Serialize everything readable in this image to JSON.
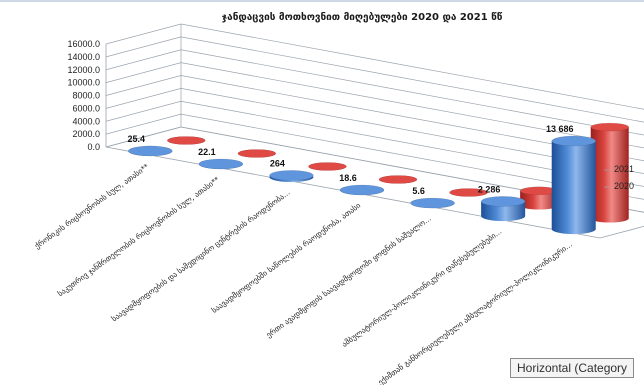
{
  "chart_data": {
    "type": "bar",
    "style": "3d-cylinder",
    "title": "ჯანდაცვის მოთხოვნით მიღებულები 2020 და 2021 წწ",
    "categories": [
      "ქრონიკის რიცხოვნობის სულ, ათასი**",
      "საკუთრივ ჯანმრთელობის რიცხოვნობის სულ, ათასი**",
      "საავადმყოფოების და სამედიცინო ცენტრების რაოდენობა...",
      "საავადმყოფოებში საწოლების რაოდენობა, ათასი",
      "ერთი ავადმყოფის საავადმყოფოში ყოფნის საშუალო...",
      "ამბულატორიულ-პოლიკლინიკური დაწესებულებები...",
      "ექიმთან განხორციელებული ამბულატორიულ-პოლიკლინიკური..."
    ],
    "series": [
      {
        "name": "2020",
        "values": [
          25.4,
          22.1,
          264,
          18.6,
          5.6,
          2286,
          13686
        ],
        "color": "#3f79c4"
      },
      {
        "name": "2021",
        "values": [
          null,
          null,
          null,
          null,
          null,
          2286,
          14200
        ],
        "color": "#d03a35"
      }
    ],
    "value_labels": [
      "25.4",
      "22.1",
      "264",
      "18.6",
      "5.6",
      "2 286",
      "13 686"
    ],
    "y_ticks": [
      "0.0",
      "2000.0",
      "4000.0",
      "6000.0",
      "8000.0",
      "10000.0",
      "12000.0",
      "14000.0",
      "16000.0"
    ],
    "ylim": [
      0,
      16000
    ],
    "grid": true,
    "depth_labels": [
      "2021",
      "2020"
    ]
  },
  "tooltip": {
    "text": "Horizontal (Category"
  }
}
